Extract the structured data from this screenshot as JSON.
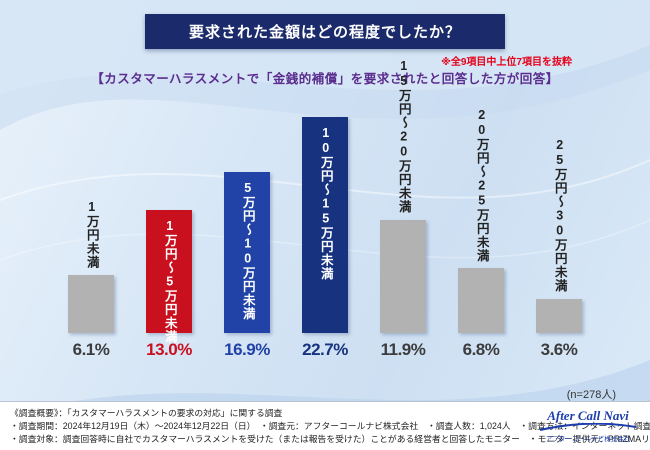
{
  "header": {
    "title": "要求された金額はどの程度でしたか？",
    "note": "※全9項目中上位7項目を抜粋",
    "subtitle": "【カスタマーハラスメントで「金銭的補償」を要求されたと回答した方が回答】"
  },
  "chart_data": {
    "type": "bar",
    "title": "要求された金額はどの程度でしたか？",
    "categories": [
      "1万円未満",
      "1万円～5万円未満",
      "5万円～10万円未満",
      "10万円～15万円未満",
      "15万円～20万円未満",
      "20万円～25万円未満",
      "25万円～30万円未満"
    ],
    "values": [
      6.1,
      13.0,
      16.9,
      22.7,
      11.9,
      6.8,
      3.6
    ],
    "value_labels": [
      "6.1%",
      "13.0%",
      "16.9%",
      "22.7%",
      "11.9%",
      "6.8%",
      "3.6%"
    ],
    "unit": "%",
    "ylim": [
      0,
      25
    ],
    "grid": false,
    "legend": "none",
    "bar_colors": [
      "#b2b2b3",
      "#c8101f",
      "#2142a6",
      "#17327f",
      "#b2b2b3",
      "#b2b2b3",
      "#b2b2b3"
    ],
    "value_colors": [
      "#3c3c3c",
      "#c8101f",
      "#2142a6",
      "#17327f",
      "#3c3c3c",
      "#3c3c3c",
      "#3c3c3c"
    ],
    "label_positions": [
      "above",
      "inside",
      "inside",
      "inside",
      "above",
      "above",
      "above"
    ],
    "sample_size_label": "(n=278人)"
  },
  "footer": {
    "line1": "《調査概要》：「カスタマーハラスメントの要求の対応」に関する調査",
    "line2": "・調査期間：2024年12月19日（木）～2024年12月22日（日）　・調査元：アフターコールナビ株式会社　・調査人数：1,024人　・調査方法：インターネット調査",
    "line3": "・調査対象：調査回答時に自社でカスタマーハラスメントを受けた（または報告を受けた）ことがある経営者と回答したモニター　・モニター提供元：PRIZMAリサーチ"
  },
  "logo": {
    "brand": "After Call Navi",
    "company": "アフターコールナビ株式会社"
  }
}
